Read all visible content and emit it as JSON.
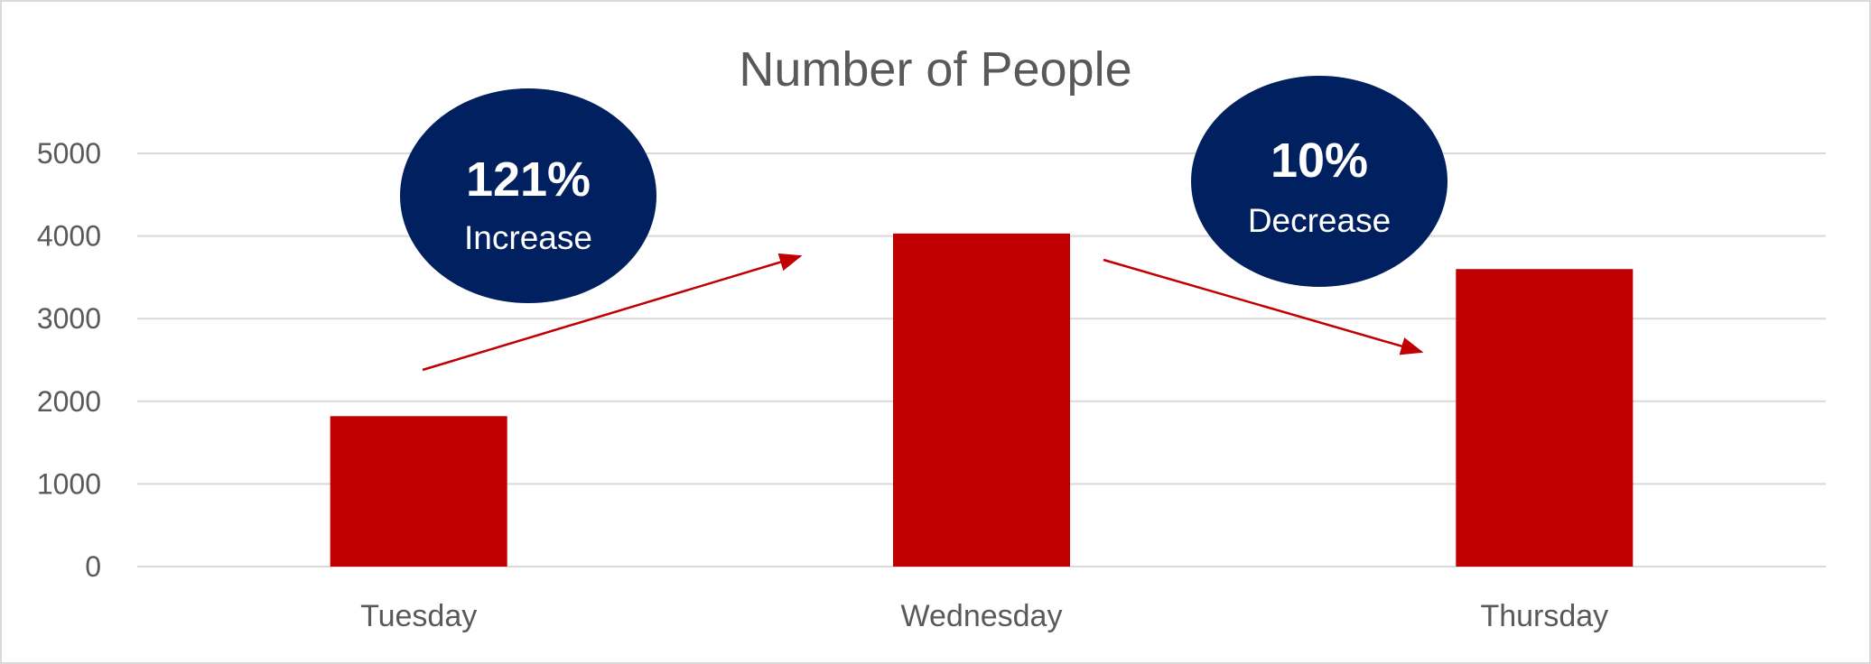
{
  "chart_data": {
    "type": "bar",
    "title": "Number of People",
    "xlabel": "",
    "ylabel": "",
    "categories": [
      "Tuesday",
      "Wednesday",
      "Thursday"
    ],
    "values": [
      1820,
      4030,
      3600
    ],
    "ylim": [
      0,
      5000
    ],
    "yticks": [
      0,
      1000,
      2000,
      3000,
      4000,
      5000
    ],
    "grid": true,
    "legend": "none",
    "bar_color": "#c00000",
    "annotations": [
      {
        "from": "Tuesday",
        "to": "Wednesday",
        "value": "121%",
        "label": "Increase"
      },
      {
        "from": "Wednesday",
        "to": "Thursday",
        "value": "10%",
        "label": "Decrease"
      }
    ]
  },
  "colors": {
    "bar": "#c00000",
    "arrow": "#c00000",
    "callout": "#002060",
    "grid": "#d9d9d9",
    "text": "#595959"
  }
}
